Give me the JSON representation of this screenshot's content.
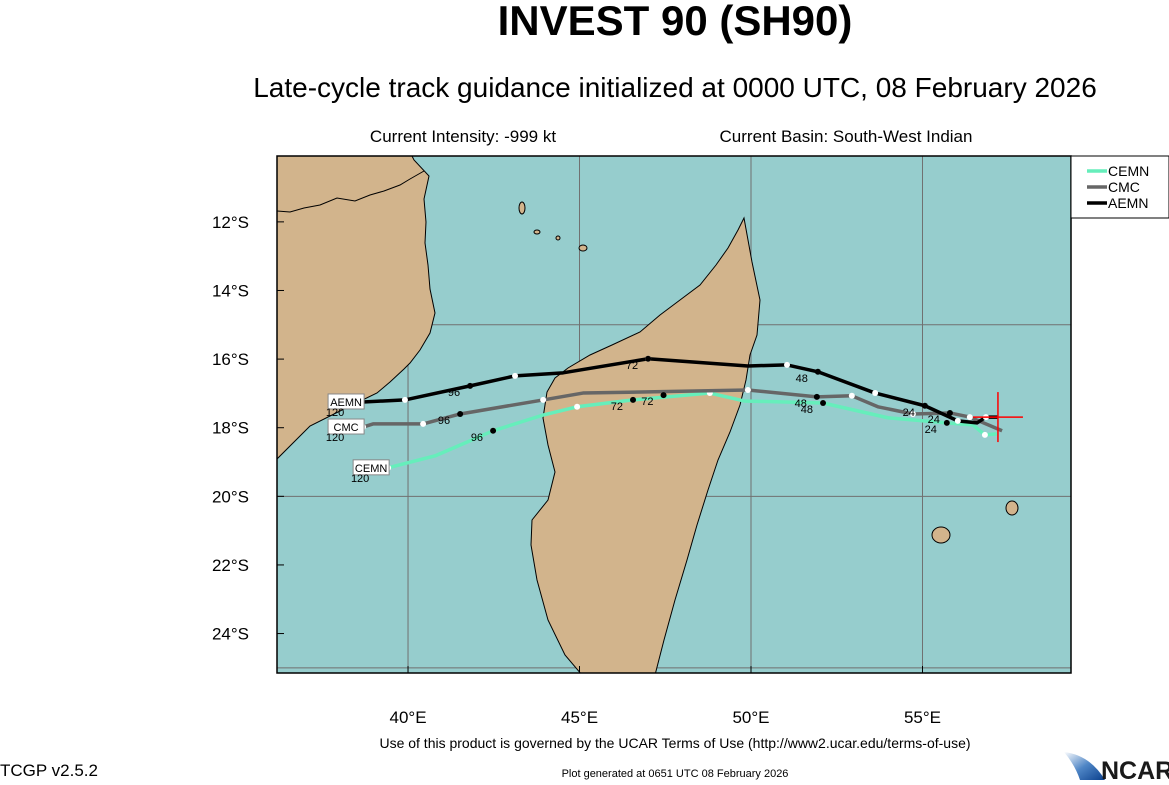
{
  "title": "INVEST 90 (SH90)",
  "subtitle": "Late-cycle track guidance initialized at 0000 UTC, 08 February 2026",
  "current_intensity": "Current Intensity: -999 kt",
  "current_basin": "Current Basin: South-West Indian",
  "footer": {
    "terms": "Use of this product is governed by the UCAR Terms of Use (http://www2.ucar.edu/terms-of-use)",
    "version": "TCGP v2.5.2",
    "generated": "Plot generated at 0651 UTC   08 February 2026",
    "logo": "NCAR"
  },
  "colors": {
    "ocean": "#96cdcd",
    "land": "#d2b48c",
    "grid": "#707070",
    "current_position": "#ff0000"
  },
  "map": {
    "lon_range": [
      36.18,
      59.33
    ],
    "lat_range": [
      -25.15,
      -10.08
    ],
    "lon_ticks": [
      {
        "value": 40,
        "label": "40°E"
      },
      {
        "value": 45,
        "label": "45°E"
      },
      {
        "value": 50,
        "label": "50°E"
      },
      {
        "value": 55,
        "label": "55°E"
      }
    ],
    "lat_ticks": [
      {
        "value": -12,
        "label": "12°S"
      },
      {
        "value": -14,
        "label": "14°S"
      },
      {
        "value": -16,
        "label": "16°S"
      },
      {
        "value": -18,
        "label": "18°S"
      },
      {
        "value": -20,
        "label": "20°S"
      },
      {
        "value": -22,
        "label": "22°S"
      },
      {
        "value": -24,
        "label": "24°S"
      }
    ],
    "grid_lons": [
      40,
      45,
      50,
      55
    ],
    "grid_lats": [
      -15,
      -20,
      -25
    ],
    "current_position": {
      "lon": 57.2,
      "lat": -17.69
    },
    "legend_position": "top-right",
    "tracks": [
      {
        "name": "CEMN",
        "color": "#66eebb",
        "points": [
          [
            57.17,
            -18.18
          ],
          [
            56.82,
            -18.21
          ],
          [
            56.47,
            -17.92
          ],
          [
            55.71,
            -17.86
          ],
          [
            53.99,
            -17.71
          ],
          [
            52.1,
            -17.28
          ],
          [
            49.8,
            -17.22
          ],
          [
            48.8,
            -16.99
          ],
          [
            46.56,
            -17.19
          ],
          [
            44.93,
            -17.39
          ],
          [
            43.94,
            -17.63
          ],
          [
            42.48,
            -18.09
          ],
          [
            40.79,
            -18.82
          ],
          [
            39.42,
            -19.17
          ]
        ],
        "hour_labels": [
          {
            "hour": "24",
            "lon": 55.71,
            "lat": -17.86
          },
          {
            "hour": "48",
            "lon": 52.1,
            "lat": -17.28
          },
          {
            "hour": "72",
            "lon": 46.56,
            "lat": -17.19
          },
          {
            "hour": "96",
            "lon": 42.48,
            "lat": -18.09
          },
          {
            "hour": "120",
            "lon": 39.42,
            "lat": -19.17
          }
        ]
      },
      {
        "name": "CMC",
        "color": "#666666",
        "points": [
          [
            57.32,
            -18.09
          ],
          [
            56.38,
            -17.69
          ],
          [
            55.8,
            -17.57
          ],
          [
            54.72,
            -17.6
          ],
          [
            53.7,
            -17.39
          ],
          [
            52.94,
            -17.07
          ],
          [
            51.92,
            -17.1
          ],
          [
            49.91,
            -16.9
          ],
          [
            45.1,
            -16.99
          ],
          [
            43.94,
            -17.19
          ],
          [
            41.52,
            -17.6
          ],
          [
            40.44,
            -17.89
          ],
          [
            38.98,
            -17.89
          ],
          [
            38.69,
            -17.98
          ]
        ],
        "hour_labels": [
          {
            "hour": "24",
            "lon": 55.8,
            "lat": -17.57
          },
          {
            "hour": "48",
            "lon": 51.92,
            "lat": -17.1
          },
          {
            "hour": "72",
            "lon": 47.45,
            "lat": -17.05
          },
          {
            "hour": "96",
            "lon": 41.52,
            "lat": -17.6
          },
          {
            "hour": "120",
            "lon": 38.69,
            "lat": -17.98
          }
        ]
      },
      {
        "name": "AEMN",
        "color": "#000000",
        "points": [
          [
            57.2,
            -17.69
          ],
          [
            56.85,
            -17.69
          ],
          [
            56.59,
            -17.86
          ],
          [
            56.03,
            -17.8
          ],
          [
            55.07,
            -17.36
          ],
          [
            53.62,
            -16.99
          ],
          [
            51.95,
            -16.37
          ],
          [
            51.05,
            -16.17
          ],
          [
            49.91,
            -16.2
          ],
          [
            47.0,
            -15.99
          ],
          [
            44.52,
            -16.4
          ],
          [
            43.12,
            -16.49
          ],
          [
            41.81,
            -16.78
          ],
          [
            39.91,
            -17.19
          ],
          [
            38.69,
            -17.25
          ]
        ],
        "hour_labels": [
          {
            "hour": "24",
            "lon": 55.07,
            "lat": -17.36
          },
          {
            "hour": "48",
            "lon": 51.95,
            "lat": -16.37
          },
          {
            "hour": "72",
            "lon": 47.0,
            "lat": -15.99
          },
          {
            "hour": "96",
            "lon": 41.81,
            "lat": -16.78
          },
          {
            "hour": "120",
            "lon": 38.69,
            "lat": -17.25
          }
        ]
      }
    ]
  }
}
